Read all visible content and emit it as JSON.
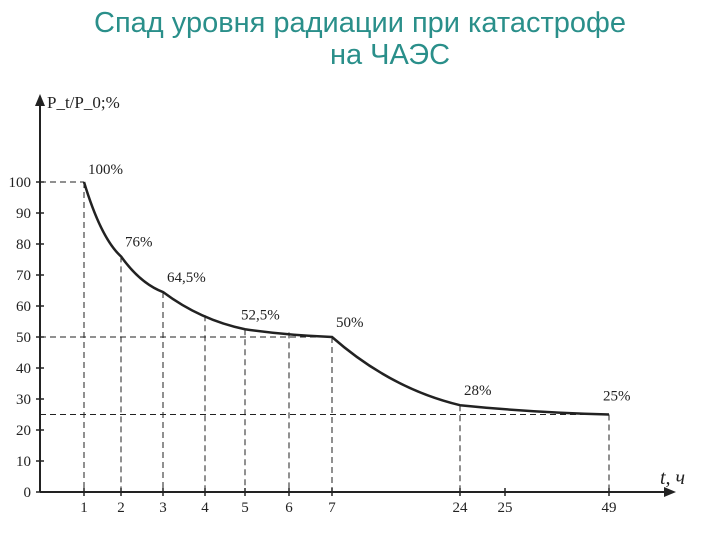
{
  "title_line1": "Спад уровня радиации при катастрофе",
  "title_line2": "на ЧАЭС",
  "colors": {
    "title": "#2a8f8a",
    "ink": "#222222"
  },
  "chart_data": {
    "type": "line",
    "ylabel": "P_t/P_0;%",
    "xlabel": "t, ч",
    "ylim": [
      0,
      110
    ],
    "y_ticks": [
      0,
      10,
      20,
      30,
      40,
      50,
      60,
      70,
      80,
      90,
      100
    ],
    "x_categories": [
      "1",
      "2",
      "3",
      "4",
      "5",
      "6",
      "7",
      "24",
      "25",
      "49"
    ],
    "series": [
      {
        "points": [
          {
            "x": "1",
            "y": 100,
            "label": "100%"
          },
          {
            "x": "2",
            "y": 76,
            "label": "76%"
          },
          {
            "x": "3",
            "y": 64.5,
            "label": "64,5%"
          },
          {
            "x": "5",
            "y": 52.5,
            "label": "52,5%"
          },
          {
            "x": "7",
            "y": 50,
            "label": "50%"
          },
          {
            "x": "24",
            "y": 28,
            "label": "28%"
          },
          {
            "x": "49",
            "y": 25,
            "label": "25%"
          }
        ]
      }
    ],
    "grid": false
  }
}
